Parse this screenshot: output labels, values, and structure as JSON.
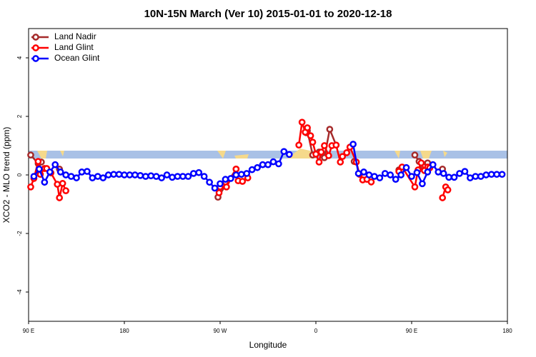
{
  "chart_data": {
    "type": "line",
    "title": "10N-15N March (Ver 10)   2015-01-01 to 2020-12-18",
    "x_label": "Longitude",
    "y_label": "XCO2 - MLO trend (ppm)",
    "xlim": [
      90,
      540
    ],
    "xticks": [
      {
        "value": 90,
        "label": "90 E"
      },
      180,
      {
        "value": 270,
        "label": "90 W"
      },
      {
        "value": 360,
        "label": "0"
      },
      {
        "value": 450,
        "label": "90 E"
      },
      {
        "value": 540,
        "label": "180"
      }
    ],
    "ylim": [
      -5,
      5
    ],
    "yticks": [
      -4,
      -2,
      0,
      2,
      4
    ],
    "legend_position": "top-left",
    "series": [
      {
        "name": "Land Nadir",
        "color": "#a52a2a",
        "x": [
          92,
          99,
          102,
          null,
          119,
          null,
          268,
          285,
          null,
          351,
          352,
          357,
          363,
          368,
          373,
          379,
          null,
          396,
          null,
          438,
          null,
          453,
          457,
          461,
          465,
          null,
          479
        ],
        "values": [
          0.68,
          0.39,
          0.44,
          null,
          0.2,
          null,
          -0.76,
          0.2,
          null,
          1.44,
          1.51,
          0.68,
          0.78,
          0.59,
          1.56,
          1.02,
          null,
          0.46,
          null,
          0.17,
          null,
          0.68,
          0.46,
          0.29,
          0.41,
          null,
          0.2
        ]
      },
      {
        "name": "Land Glint",
        "color": "#ff0000",
        "x": [
          92,
          95,
          99,
          101,
          105,
          107,
          111,
          117,
          119,
          122,
          125,
          null,
          269,
          270,
          275,
          276,
          285,
          287,
          291,
          296,
          null,
          344,
          347,
          350,
          352,
          355,
          357,
          360,
          363,
          365,
          368,
          372,
          375,
          379,
          383,
          385,
          389,
          392,
          398,
          401,
          404,
          408,
          412,
          null,
          438,
          441,
          453,
          456,
          459,
          462,
          465,
          467,
          null,
          479,
          482,
          484
        ],
        "values": [
          -0.41,
          -0.12,
          0.46,
          0.02,
          0.22,
          0.22,
          0.07,
          -0.32,
          -0.78,
          -0.29,
          -0.54,
          null,
          -0.61,
          -0.41,
          -0.24,
          -0.41,
          0.2,
          -0.2,
          -0.22,
          -0.1,
          null,
          1.02,
          1.8,
          1.46,
          1.61,
          1.34,
          1.12,
          0.71,
          0.44,
          0.78,
          1.0,
          0.66,
          1.0,
          1.02,
          0.44,
          0.63,
          0.76,
          0.95,
          0.44,
          0.02,
          -0.17,
          -0.15,
          -0.24,
          null,
          0.12,
          0.27,
          -0.41,
          0.17,
          0.41,
          0.15,
          0.27,
          0.24,
          null,
          -0.78,
          -0.41,
          -0.51
        ]
      },
      {
        "name": "Ocean Glint",
        "color": "#0000ff",
        "x": [
          95,
          100,
          105,
          110,
          115,
          120,
          125,
          130,
          135,
          140,
          145,
          150,
          155,
          160,
          165,
          170,
          175,
          180,
          185,
          190,
          195,
          200,
          205,
          210,
          215,
          220,
          225,
          230,
          235,
          240,
          245,
          250,
          255,
          260,
          265,
          270,
          275,
          280,
          285,
          290,
          295,
          300,
          305,
          310,
          315,
          320,
          325,
          330,
          335,
          null,
          395,
          400,
          405,
          410,
          415,
          420,
          425,
          430,
          435,
          440,
          445,
          450,
          455,
          460,
          465,
          470,
          475,
          480,
          485,
          490,
          495,
          500,
          505,
          510,
          515,
          520,
          525,
          530,
          535
        ],
        "values": [
          -0.05,
          0.2,
          -0.25,
          0.1,
          0.35,
          0.1,
          0.0,
          -0.05,
          -0.1,
          0.1,
          0.12,
          -0.1,
          -0.05,
          -0.1,
          0.0,
          0.02,
          0.02,
          0.0,
          0.0,
          0.0,
          -0.02,
          -0.05,
          -0.03,
          -0.05,
          -0.1,
          0.0,
          -0.08,
          -0.05,
          -0.05,
          -0.05,
          0.05,
          0.08,
          -0.05,
          -0.25,
          -0.45,
          -0.3,
          -0.15,
          -0.12,
          0.0,
          0.02,
          0.05,
          0.18,
          0.25,
          0.35,
          0.35,
          0.45,
          0.38,
          0.8,
          0.7,
          null,
          1.05,
          0.05,
          0.1,
          0.0,
          -0.05,
          -0.1,
          0.05,
          0.0,
          -0.15,
          0.0,
          0.25,
          -0.05,
          0.08,
          -0.3,
          0.1,
          0.35,
          0.1,
          0.05,
          -0.08,
          -0.08,
          0.05,
          0.12,
          -0.1,
          -0.05,
          -0.05,
          0.0,
          0.02,
          0.02,
          0.02
        ]
      }
    ]
  }
}
